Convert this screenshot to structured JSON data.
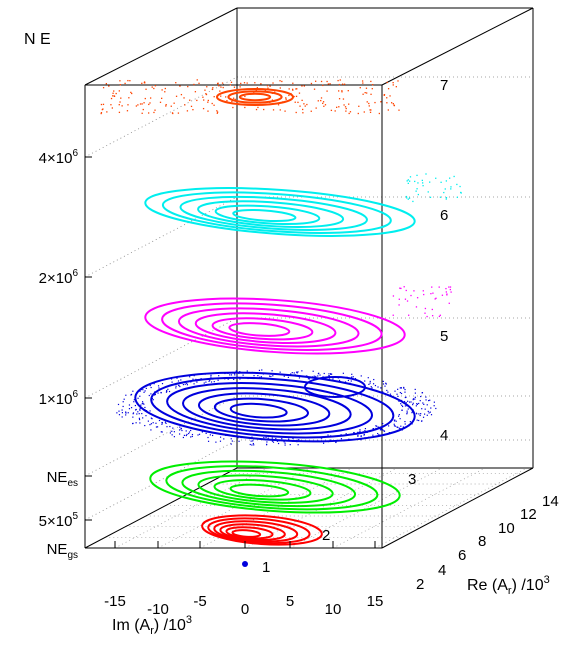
{
  "chart_data": {
    "type": "scatter",
    "title": "",
    "zlabel": "N E",
    "xlabel": "Im (A",
    "xlabel_sub": "r",
    "xlabel_tail": ") /10",
    "xlabel_sup": "3",
    "ylabel": "Re (A",
    "ylabel_sub": "r",
    "ylabel_tail": ") /10",
    "ylabel_sup": "3",
    "x_ticks": [
      "-15",
      "-10",
      "-5",
      "0",
      "5",
      "10",
      "15"
    ],
    "y_ticks": [
      "2",
      "4",
      "6",
      "8",
      "10",
      "12",
      "14"
    ],
    "z_ticks": [
      {
        "base": "NE",
        "sub": "gs"
      },
      {
        "base": "5×10",
        "sup": "5"
      },
      {
        "base": "NE",
        "sub": "es"
      },
      {
        "base": "1×10",
        "sup": "6"
      },
      {
        "base": "2×10",
        "sup": "6"
      },
      {
        "base": "4×10",
        "sup": "6"
      }
    ],
    "grid": true,
    "levels": [
      {
        "label": "1",
        "color": "#0000dd",
        "style": "point"
      },
      {
        "label": "2",
        "color": "#ff0000",
        "style": "orbit"
      },
      {
        "label": "3",
        "color": "#00ee00",
        "style": "orbit"
      },
      {
        "label": "4",
        "color": "#0000dd",
        "style": "chaotic"
      },
      {
        "label": "5",
        "color": "#ff00ff",
        "style": "orbit"
      },
      {
        "label": "6",
        "color": "#00eeee",
        "style": "orbit"
      },
      {
        "label": "7",
        "color": "#ff4400",
        "style": "scattered"
      }
    ]
  }
}
